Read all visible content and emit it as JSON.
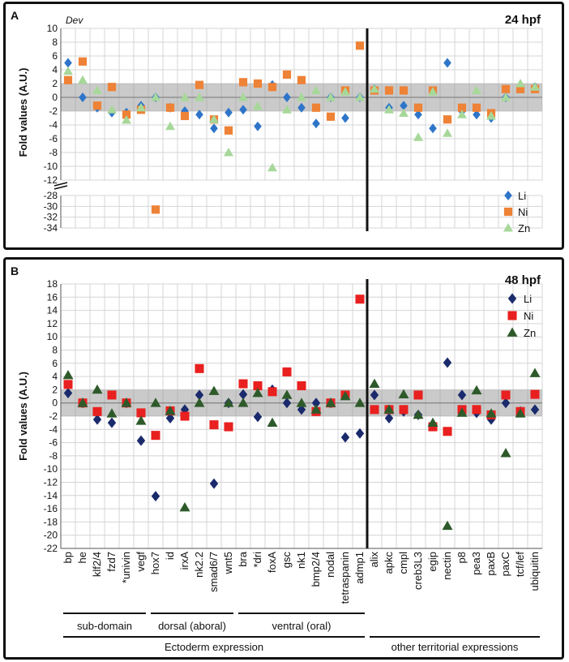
{
  "chart_data": [
    {
      "type": "scatter",
      "panel_letter": "A",
      "title": "24 hpf",
      "subtitle": "Dev",
      "ylabel": "Fold values (A.U.)",
      "ylim_upper": [
        -12,
        10
      ],
      "ylim_lower": [
        -34,
        -28
      ],
      "yticks_upper": [
        "10",
        "8",
        "6",
        "4",
        "2",
        "0",
        "-2",
        "-4",
        "-6",
        "-8",
        "-10",
        "-12"
      ],
      "yticks_lower": [
        "-28",
        "-30",
        "-32",
        "-34"
      ],
      "shaded_band": [
        -2,
        2
      ],
      "legend_position": "bottom-right",
      "genes": [
        "bp",
        "he",
        "klf2/4",
        "fzd7",
        "*univin",
        "vegf",
        "hox7",
        "id",
        "irxA",
        "nk2.2",
        "smad6/7",
        "wnt5",
        "bra",
        "*dri",
        "foxA",
        "gsc",
        "nk1",
        "bmp2/4",
        "nodal",
        "tetraspanin",
        "admp1",
        "alix",
        "apkc",
        "cmpl",
        "creb3L3",
        "egip",
        "nectin",
        "p8",
        "pea3",
        "paxB",
        "paxC",
        "tcf/lef",
        "ubiquitin"
      ],
      "series": [
        {
          "name": "Li",
          "color": "#2e75c9",
          "marker": "diamond",
          "values": [
            5,
            0,
            -1.5,
            -2.2,
            -2.2,
            -1.2,
            0,
            -1.5,
            -2,
            -2.5,
            -4.5,
            -2.2,
            -1.8,
            -4.2,
            1.8,
            0,
            -1.5,
            -3.8,
            0,
            -3,
            0,
            1.2,
            -1.5,
            -1.2,
            -2.5,
            -4.5,
            5,
            -2,
            -2.5,
            -3,
            0,
            1.5,
            1.5
          ]
        },
        {
          "name": "Ni",
          "color": "#ee8236",
          "marker": "square",
          "values": [
            2.5,
            5.2,
            -1.2,
            1.5,
            -2.5,
            -1.8,
            -30.6,
            -1.5,
            -2.7,
            1.8,
            -3.2,
            -4.8,
            2.2,
            2,
            1.5,
            3.3,
            2.5,
            -1.5,
            -2.8,
            1,
            7.5,
            1,
            1,
            1,
            -1.5,
            1,
            -3.2,
            -1.5,
            -1.5,
            -2.3,
            1.2,
            1.2,
            1.2
          ]
        },
        {
          "name": "Zn",
          "color": "#a7d89a",
          "marker": "triangle",
          "values": [
            3.8,
            2.5,
            1,
            -1.8,
            -3.3,
            -1.5,
            0,
            -4.2,
            0,
            0,
            -3.2,
            -8,
            0,
            -1.3,
            -10.2,
            -1.8,
            0,
            1,
            0,
            0.8,
            0,
            1.2,
            -1.8,
            -2.3,
            -5.8,
            0.8,
            -5.2,
            -2.5,
            1,
            -2.7,
            0,
            2,
            1.5
          ]
        }
      ]
    },
    {
      "type": "scatter",
      "panel_letter": "B",
      "title": "48 hpf",
      "ylabel": "Fold values (A.U.)",
      "ylim": [
        -22,
        18
      ],
      "yticks": [
        "18",
        "16",
        "14",
        "12",
        "10",
        "8",
        "6",
        "4",
        "2",
        "0",
        "-2",
        "-4",
        "-6",
        "-8",
        "-10",
        "-12",
        "-14",
        "-16",
        "-18",
        "-20",
        "-22"
      ],
      "shaded_band": [
        -2,
        2
      ],
      "legend_position": "top-right",
      "genes": [
        "bp",
        "he",
        "klf2/4",
        "fzd7",
        "*univin",
        "vegf",
        "hox7",
        "id",
        "irxA",
        "nk2.2",
        "smad6/7",
        "wnt5",
        "bra",
        "*dri",
        "foxA",
        "gsc",
        "nk1",
        "bmp2/4",
        "nodal",
        "tetraspanin",
        "admp1",
        "alix",
        "apkc",
        "cmpl",
        "creb3L3",
        "egip",
        "nectin",
        "p8",
        "pea3",
        "paxB",
        "paxC",
        "tcf/lef",
        "ubiquitin"
      ],
      "series": [
        {
          "name": "Li",
          "color": "#1a2a6c",
          "marker": "diamond",
          "values": [
            1.5,
            0,
            -2.5,
            -3,
            0,
            -5.7,
            -14.1,
            -2.3,
            -1,
            1.2,
            -12.2,
            0,
            1.3,
            -2.1,
            2,
            0,
            -1,
            0,
            0,
            -5.2,
            -4.6,
            1.2,
            -2.3,
            -1.3,
            -1.8,
            -3.2,
            6.1,
            1.2,
            -1.5,
            -2.5,
            0,
            -1.3,
            -1
          ]
        },
        {
          "name": "Ni",
          "color": "#e8201f",
          "marker": "square",
          "values": [
            2.8,
            0,
            -1.3,
            1.2,
            0,
            -1.5,
            -4.9,
            -1.2,
            -2,
            5.2,
            -3.3,
            -3.6,
            2.9,
            2.6,
            1.7,
            4.7,
            2.6,
            -1.3,
            0,
            1.2,
            15.7,
            -1,
            -1,
            -1,
            1.2,
            -3.6,
            -4.3,
            -1,
            -1,
            -1.8,
            1.2,
            -1.3,
            1.3
          ]
        },
        {
          "name": "Zn",
          "color": "#2e5a2a",
          "marker": "triangle",
          "values": [
            4.2,
            0,
            2,
            -1.6,
            0,
            -2.7,
            0,
            -1.2,
            -15.8,
            0,
            1.8,
            0,
            0,
            1.5,
            -3,
            1.2,
            0,
            -1,
            0,
            1,
            0,
            2.9,
            -1,
            1.3,
            -1.8,
            -3,
            -18.6,
            -1.5,
            1.9,
            -1.6,
            -7.6,
            -1.6,
            4.5
          ]
        }
      ],
      "groups": [
        {
          "label": "sub-domain",
          "from": 0,
          "to": 5
        },
        {
          "label": "dorsal (aboral)",
          "from": 6,
          "to": 11
        },
        {
          "label": "ventral (oral)",
          "from": 12,
          "to": 20
        },
        {
          "label": "Ectoderm expression",
          "from": 0,
          "to": 20
        },
        {
          "label": "other territorial expressions",
          "from": 21,
          "to": 32
        }
      ]
    }
  ]
}
